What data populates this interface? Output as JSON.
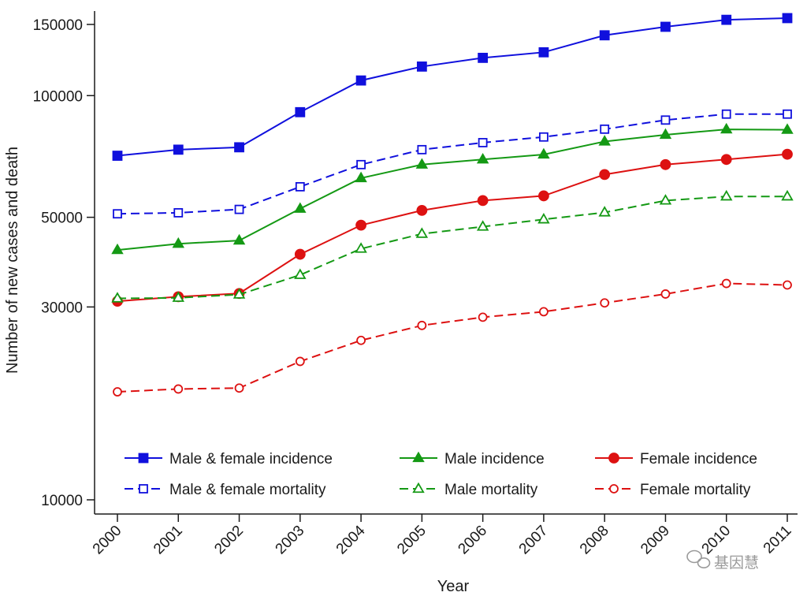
{
  "chart_data": {
    "type": "line",
    "title": "",
    "xlabel": "Year",
    "ylabel": "Number of new cases and death",
    "y_scale": "log",
    "ylim": [
      10000,
      160000
    ],
    "y_ticks": [
      {
        "value": 10000,
        "label": "10000"
      },
      {
        "value": 30000,
        "label": "30000"
      },
      {
        "value": 50000,
        "label": "50000"
      },
      {
        "value": 100000,
        "label": "100000"
      },
      {
        "value": 150000,
        "label": "150000"
      }
    ],
    "categories": [
      "2000",
      "2001",
      "2002",
      "2003",
      "2004",
      "2005",
      "2006",
      "2007",
      "2008",
      "2009",
      "2010",
      "2011"
    ],
    "grid": false,
    "legend_position": "bottom-inside",
    "series": [
      {
        "name": "Male & female incidence",
        "color": "#1010dd",
        "dashed": false,
        "marker": "square",
        "filled": true,
        "values": [
          71000,
          73500,
          74500,
          91000,
          109000,
          118000,
          124000,
          128000,
          141000,
          148000,
          154000,
          155500
        ]
      },
      {
        "name": "Male incidence",
        "color": "#149914",
        "dashed": false,
        "marker": "triangle",
        "filled": true,
        "values": [
          41500,
          43000,
          43800,
          52500,
          62500,
          67500,
          69500,
          71500,
          77000,
          80000,
          82500,
          82300
        ]
      },
      {
        "name": "Female incidence",
        "color": "#dd1111",
        "dashed": false,
        "marker": "circle",
        "filled": true,
        "values": [
          31000,
          31800,
          32400,
          40500,
          47800,
          52000,
          55000,
          56500,
          63800,
          67500,
          69500,
          71600
        ]
      },
      {
        "name": "Male & female mortality",
        "color": "#1010dd",
        "dashed": true,
        "marker": "square",
        "filled": false,
        "values": [
          51000,
          51300,
          52300,
          59500,
          67500,
          73500,
          76500,
          79000,
          82600,
          87000,
          90000,
          90000
        ]
      },
      {
        "name": "Male mortality",
        "color": "#149914",
        "dashed": true,
        "marker": "triangle",
        "filled": false,
        "values": [
          31500,
          31600,
          32200,
          36000,
          41800,
          45500,
          47400,
          49400,
          51400,
          55000,
          56300,
          56300
        ]
      },
      {
        "name": "Female mortality",
        "color": "#dd1111",
        "dashed": true,
        "marker": "circle",
        "filled": false,
        "values": [
          18500,
          18800,
          18900,
          22000,
          24800,
          27000,
          28300,
          29200,
          30700,
          32300,
          34300,
          34000
        ]
      }
    ],
    "legend_order": [
      0,
      1,
      2,
      3,
      4,
      5
    ]
  },
  "watermark": "基因慧"
}
